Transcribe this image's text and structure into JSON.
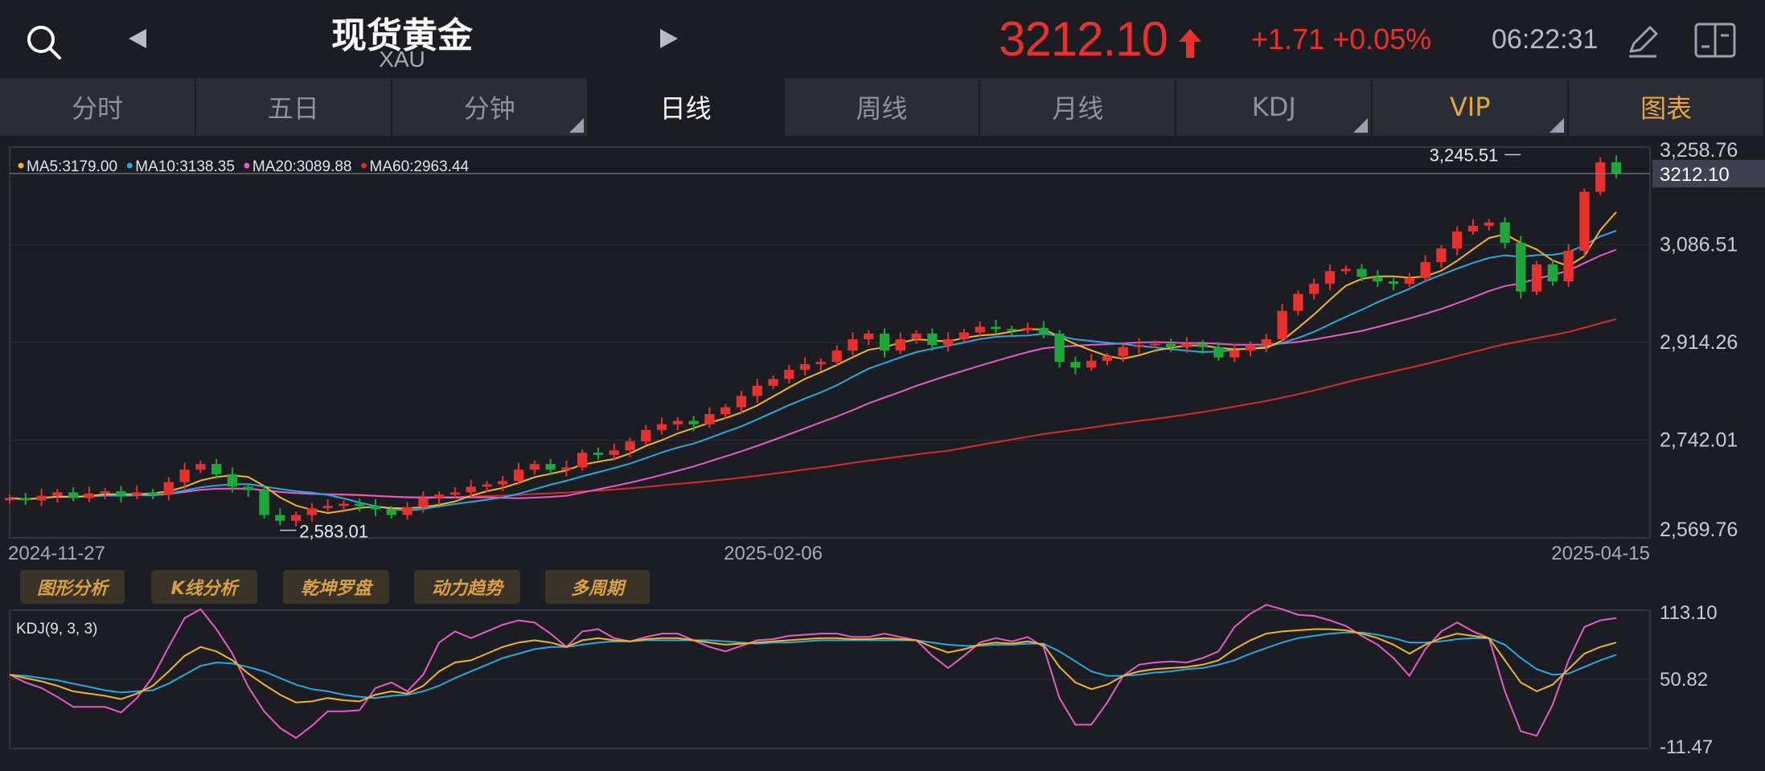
{
  "header": {
    "title": "现货黄金",
    "code": "XAU",
    "price": "3212.10",
    "change": "+1.71 +0.05%",
    "time": "06:22:31",
    "icons": [
      "search-icon",
      "prev-arrow-icon",
      "next-arrow-icon",
      "up-arrow-icon",
      "pen-icon",
      "layout-icon"
    ]
  },
  "tabs": [
    {
      "label": "分时"
    },
    {
      "label": "五日"
    },
    {
      "label": "分钟"
    },
    {
      "label": "日线"
    },
    {
      "label": "周线"
    },
    {
      "label": "月线"
    },
    {
      "label": "KDJ"
    },
    {
      "label": "VIP"
    },
    {
      "label": "图表"
    }
  ],
  "tools": [
    "图形分析",
    "K线分析",
    "乾坤罗盘",
    "动力趋势",
    "多周期"
  ],
  "colors": {
    "up": "#e8312f",
    "down": "#1fa83a",
    "ma5": "#f0b429",
    "ma10": "#27a9e0",
    "ma20": "#e65bc8",
    "ma60": "#d92b2b",
    "accent": "#e7a63a"
  },
  "chart_data": {
    "type": "candlestick",
    "main": {
      "legend": [
        {
          "name": "MA5",
          "value": "3179.00",
          "color": "#f0b429"
        },
        {
          "name": "MA10",
          "value": "3138.35",
          "color": "#27a9e0"
        },
        {
          "name": "MA20",
          "value": "3089.88",
          "color": "#e65bc8"
        },
        {
          "name": "MA60",
          "value": "2963.44",
          "color": "#d92b2b"
        }
      ],
      "y_ticks": [
        "3,258.76",
        "3,086.51",
        "2,914.26",
        "2,742.01",
        "2,569.76"
      ],
      "ylim": [
        2569.76,
        3258.76
      ],
      "current_price_label": "3212.10",
      "current_price": 3212.1,
      "high_label": "3,245.51",
      "high_value": 3245.51,
      "high_index": 95,
      "low_label": "2,583.01",
      "low_value": 2583.01,
      "low_index": 17,
      "x_labels": [
        {
          "label": "2024-11-27",
          "index": 0
        },
        {
          "label": "2025-02-06",
          "index": 48
        },
        {
          "label": "2025-04-15",
          "index": 96
        }
      ],
      "closes": [
        2640,
        2636,
        2644,
        2650,
        2640,
        2648,
        2652,
        2644,
        2650,
        2646,
        2668,
        2690,
        2700,
        2682,
        2660,
        2654,
        2610,
        2600,
        2610,
        2622,
        2626,
        2630,
        2626,
        2620,
        2610,
        2624,
        2640,
        2646,
        2650,
        2660,
        2664,
        2670,
        2690,
        2700,
        2690,
        2694,
        2720,
        2716,
        2724,
        2740,
        2760,
        2770,
        2776,
        2770,
        2788,
        2800,
        2820,
        2838,
        2850,
        2866,
        2876,
        2880,
        2900,
        2920,
        2930,
        2900,
        2920,
        2930,
        2910,
        2920,
        2932,
        2942,
        2938,
        2936,
        2940,
        2930,
        2880,
        2870,
        2882,
        2890,
        2906,
        2910,
        2912,
        2906,
        2912,
        2906,
        2888,
        2900,
        2910,
        2920,
        2970,
        3000,
        3018,
        3040,
        3044,
        3030,
        3022,
        3018,
        3028,
        3056,
        3080,
        3110,
        3120,
        3126,
        3090,
        3004,
        3052,
        3022,
        3076,
        3180,
        3232,
        3212
      ]
    },
    "kdj": {
      "title": "KDJ(9, 3, 3)",
      "y_ticks": [
        "113.10",
        "50.82",
        "-11.47"
      ],
      "ylim": [
        -11.47,
        113.1
      ],
      "K": [
        55,
        52,
        49,
        45,
        40,
        38,
        36,
        33,
        38,
        45,
        58,
        72,
        80,
        76,
        68,
        56,
        46,
        37,
        30,
        31,
        34,
        32,
        31,
        37,
        40,
        38,
        45,
        58,
        66,
        68,
        74,
        80,
        84,
        86,
        84,
        80,
        86,
        88,
        86,
        85,
        87,
        88,
        88,
        86,
        84,
        82,
        83,
        84,
        85,
        86,
        87,
        88,
        88,
        87,
        87,
        88,
        87,
        86,
        80,
        75,
        78,
        82,
        84,
        83,
        85,
        82,
        62,
        48,
        42,
        46,
        54,
        58,
        60,
        61,
        62,
        64,
        68,
        78,
        86,
        92,
        94,
        95,
        96,
        96,
        95,
        92,
        88,
        82,
        74,
        82,
        88,
        92,
        90,
        88,
        68,
        48,
        40,
        46,
        60,
        74,
        80,
        84
      ],
      "D": [
        55,
        54,
        52,
        50,
        47,
        44,
        41,
        39,
        40,
        41,
        47,
        55,
        63,
        66,
        65,
        62,
        58,
        52,
        46,
        42,
        40,
        37,
        35,
        34,
        36,
        37,
        40,
        45,
        52,
        58,
        64,
        70,
        74,
        78,
        80,
        80,
        82,
        84,
        85,
        85,
        86,
        86,
        86,
        86,
        86,
        85,
        84,
        83,
        84,
        84,
        85,
        86,
        86,
        86,
        86,
        86,
        86,
        86,
        84,
        82,
        81,
        81,
        82,
        82,
        83,
        83,
        76,
        67,
        58,
        54,
        54,
        55,
        57,
        58,
        60,
        61,
        64,
        68,
        74,
        79,
        84,
        88,
        90,
        92,
        93,
        93,
        91,
        88,
        84,
        84,
        85,
        87,
        88,
        88,
        82,
        70,
        60,
        55,
        56,
        62,
        68,
        73
      ],
      "J": [
        55,
        48,
        43,
        35,
        26,
        26,
        26,
        21,
        34,
        53,
        80,
        106,
        114,
        96,
        74,
        44,
        22,
        7,
        -2,
        9,
        22,
        22,
        23,
        43,
        48,
        40,
        55,
        84,
        94,
        88,
        94,
        100,
        104,
        102,
        92,
        80,
        94,
        96,
        88,
        85,
        89,
        92,
        92,
        86,
        80,
        76,
        81,
        86,
        87,
        90,
        91,
        92,
        92,
        89,
        89,
        92,
        89,
        86,
        72,
        61,
        72,
        84,
        88,
        85,
        89,
        80,
        34,
        10,
        10,
        30,
        54,
        64,
        66,
        67,
        66,
        70,
        76,
        98,
        110,
        118,
        114,
        109,
        108,
        104,
        99,
        90,
        82,
        70,
        54,
        78,
        94,
        102,
        94,
        88,
        40,
        4,
        0,
        28,
        68,
        98,
        104,
        106
      ]
    }
  }
}
